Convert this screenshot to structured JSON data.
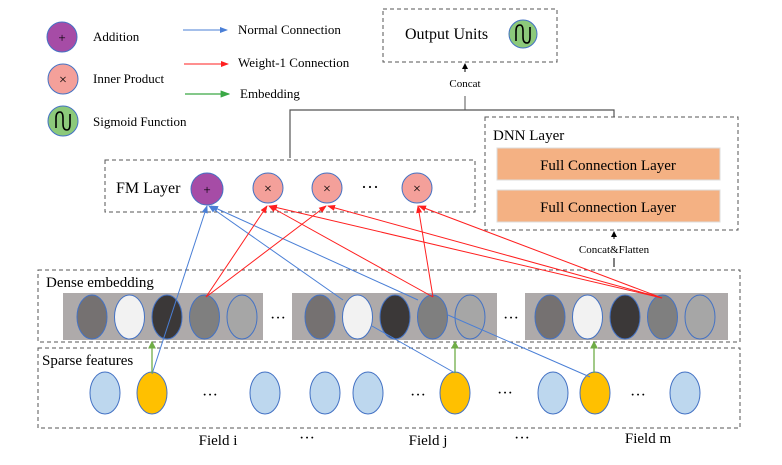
{
  "legend": {
    "addition": "Addition",
    "inner_product": "Inner Product",
    "sigmoid": "Sigmoid Function",
    "normal_connection": "Normal Connection",
    "weight1_connection": "Weight-1 Connection",
    "embedding": "Embedding",
    "plus_symbol": "+",
    "times_symbol": "×"
  },
  "output": {
    "label": "Output Units"
  },
  "concat_label": "Concat",
  "concat_flatten_label": "Concat&Flatten",
  "fm_layer": {
    "label": "FM Layer",
    "ellipsis": "···"
  },
  "dnn_layer": {
    "label": "DNN Layer",
    "layers": [
      "Full Connection Layer",
      "Full Connection Layer"
    ]
  },
  "dense_embedding": {
    "label": "Dense embedding",
    "ellipsis": "···"
  },
  "sparse_features": {
    "label": "Sparse features",
    "ellipsis": "···"
  },
  "fields": {
    "i": "Field i",
    "j": "Field j",
    "m": "Field m",
    "ellipsis": "···"
  },
  "colors": {
    "addition": "#a64ca6",
    "inner_product": "#f4a09a",
    "sigmoid": "#8cc97a",
    "dense_bar": "#aeaaaa",
    "sparse_node": "#bdd7ee",
    "active_node": "#ffc000",
    "dnn_layer": "#f4b183",
    "normal_connection": "#4a7fd6",
    "weight1_connection": "#ff1f1f",
    "embedding_arrow": "#3aa845"
  }
}
